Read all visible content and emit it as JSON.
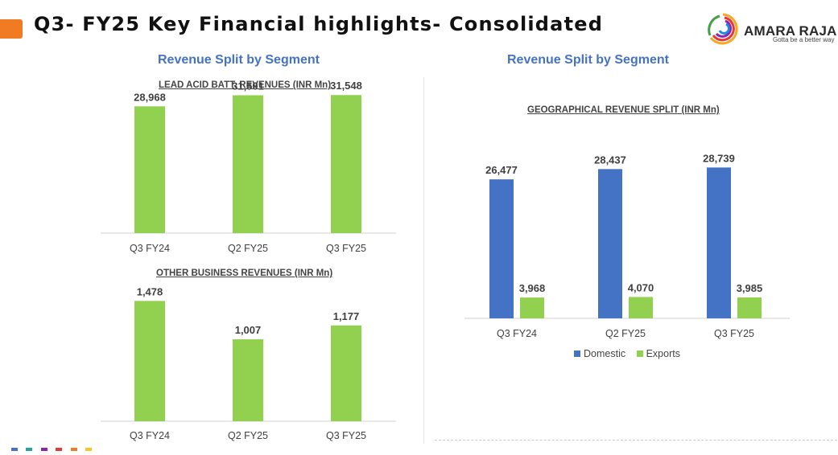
{
  "header": {
    "title": "Q3- FY25 Key Financial highlights- Consolidated",
    "logo_name": "AMARA RAJA",
    "logo_tagline": "Gotta be a better way"
  },
  "left": {
    "section_title": "Revenue Split by Segment"
  },
  "right": {
    "section_title": "Revenue Split by Segment"
  },
  "colors": {
    "accent": "#f07b22",
    "green": "#92d050",
    "blue": "#4472c4",
    "title_blue": "#4472c4"
  },
  "chart_data": [
    {
      "type": "bar",
      "title": "LEAD ACID BATT. REVENUES (INR Mn)",
      "categories": [
        "Q3 FY24",
        "Q2 FY25",
        "Q3 FY25"
      ],
      "values": [
        28968,
        31501,
        31548
      ],
      "data_labels": [
        "28,968",
        "31,501",
        "31,548"
      ],
      "color": "#92d050",
      "ylim": [
        0,
        36000
      ],
      "grid": false
    },
    {
      "type": "bar",
      "title": "OTHER BUSINESS REVENUES (INR Mn)",
      "categories": [
        "Q3 FY24",
        "Q2 FY25",
        "Q3 FY25"
      ],
      "values": [
        1478,
        1007,
        1177
      ],
      "data_labels": [
        "1,478",
        "1,007",
        "1,177"
      ],
      "color": "#92d050",
      "ylim": [
        0,
        1600
      ],
      "grid": false
    },
    {
      "type": "bar",
      "title": "GEOGRAPHICAL REVENUE SPLIT (INR Mn)",
      "categories": [
        "Q3 FY24",
        "Q2 FY25",
        "Q3 FY25"
      ],
      "series": [
        {
          "name": "Domestic",
          "color": "#4472c4",
          "values": [
            26477,
            28437,
            28739
          ],
          "data_labels": [
            "26,477",
            "28,437",
            "28,739"
          ]
        },
        {
          "name": "Exports",
          "color": "#92d050",
          "values": [
            3968,
            4070,
            3985
          ],
          "data_labels": [
            "3,968",
            "4,070",
            "3,985"
          ]
        }
      ],
      "ylim": [
        0,
        34000
      ],
      "legend": "bottom",
      "grid": false
    }
  ]
}
